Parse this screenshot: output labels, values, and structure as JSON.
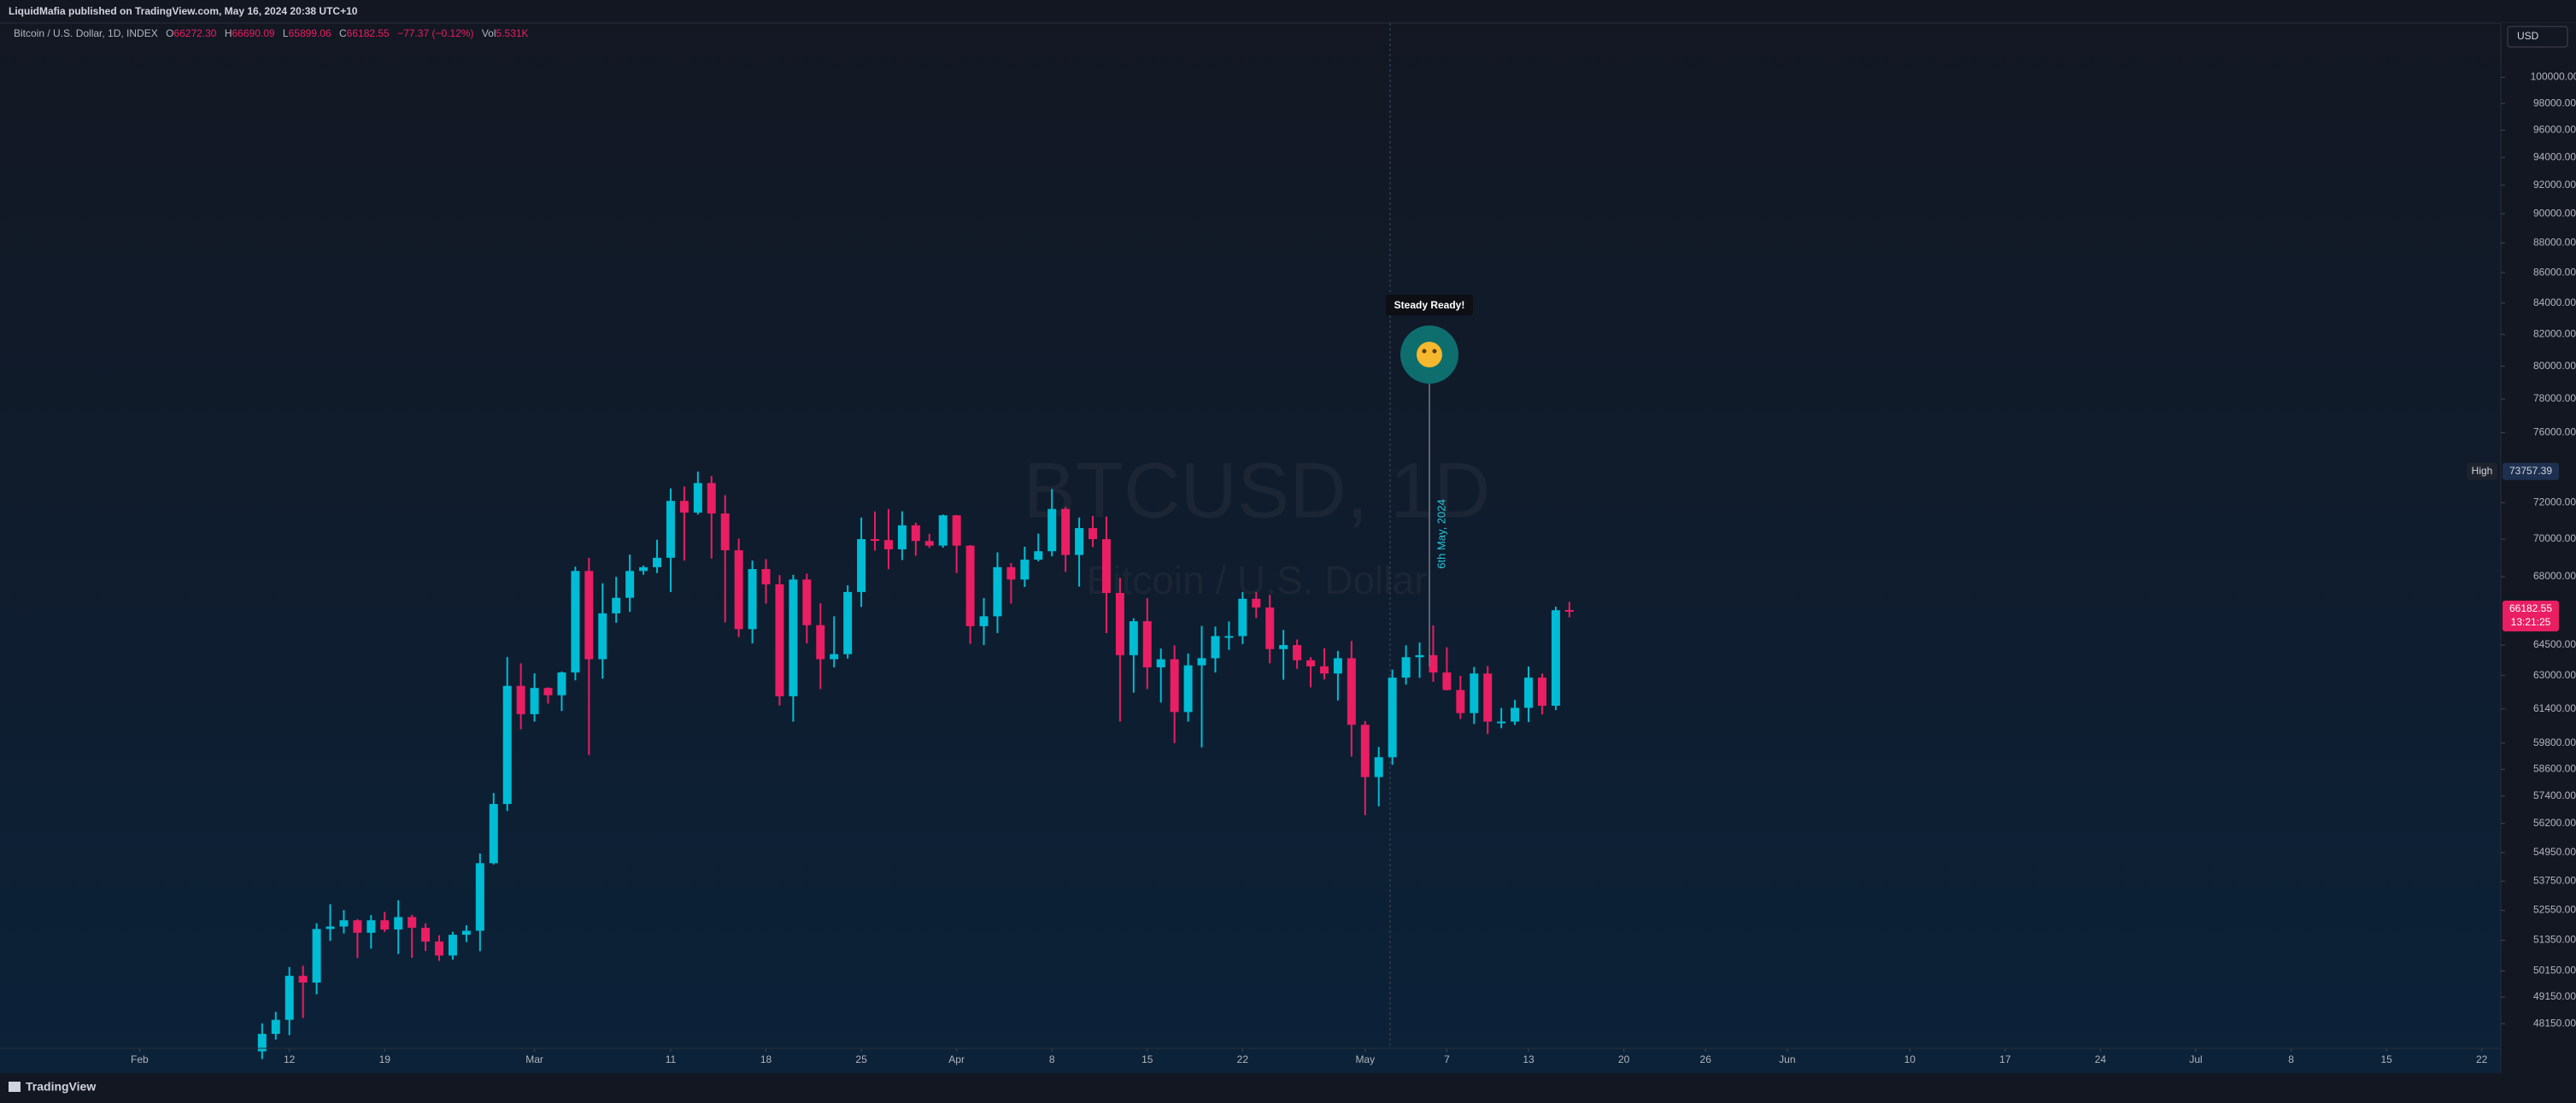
{
  "header": {
    "publisher": "LiquidMafia published on TradingView.com, May 16, 2024 20:38 UTC+10"
  },
  "legend": {
    "symbol": "Bitcoin / U.S. Dollar, 1D, INDEX",
    "open_label": "O",
    "open": "66272.30",
    "high_label": "H",
    "high": "66690.09",
    "low_label": "L",
    "low": "65899.06",
    "close_label": "C",
    "close": "66182.55",
    "change": "−77.37 (−0.12%)",
    "volume_label": "Vol",
    "volume": "5.531K"
  },
  "watermark": {
    "symbol": "BTCUSD, 1D",
    "description": "Bitcoin / U.S. Dollar"
  },
  "price_scale": {
    "currency": "USD",
    "high_label": "High",
    "high_value": "73757.39",
    "last_price": "66182.55",
    "countdown": "13:21:25"
  },
  "annotation": {
    "title": "Steady Ready!",
    "date": "6th May, 2024"
  },
  "footer": {
    "brand": "TradingView"
  },
  "chart_data": {
    "type": "candlestick",
    "up_color": "#00bcd4",
    "down_color": "#e91e63",
    "log_scale": true,
    "grid": false,
    "xlim": [
      -10,
      173.4
    ],
    "ylim": [
      47240,
      104280
    ],
    "xticks": [
      {
        "value": 0,
        "label": "Feb"
      },
      {
        "value": 11,
        "label": "12"
      },
      {
        "value": 18,
        "label": "19"
      },
      {
        "value": 29,
        "label": "Mar"
      },
      {
        "value": 39,
        "label": "11"
      },
      {
        "value": 46,
        "label": "18"
      },
      {
        "value": 53,
        "label": "25"
      },
      {
        "value": 60,
        "label": "Apr"
      },
      {
        "value": 67,
        "label": "8"
      },
      {
        "value": 74,
        "label": "15"
      },
      {
        "value": 81,
        "label": "22"
      },
      {
        "value": 90,
        "label": "May"
      },
      {
        "value": 96,
        "label": "7"
      },
      {
        "value": 102,
        "label": "13"
      },
      {
        "value": 109,
        "label": "20"
      },
      {
        "value": 115,
        "label": "26"
      },
      {
        "value": 121,
        "label": "Jun"
      },
      {
        "value": 130,
        "label": "10"
      },
      {
        "value": 137,
        "label": "17"
      },
      {
        "value": 144,
        "label": "24"
      },
      {
        "value": 151,
        "label": "Jul"
      },
      {
        "value": 158,
        "label": "8"
      },
      {
        "value": 165,
        "label": "15"
      },
      {
        "value": 172,
        "label": "22"
      }
    ],
    "yticks": [
      {
        "value": 100000,
        "label": "100000.00"
      },
      {
        "value": 98000,
        "label": "98000.00"
      },
      {
        "value": 96000,
        "label": "96000.00"
      },
      {
        "value": 94000,
        "label": "94000.00"
      },
      {
        "value": 92000,
        "label": "92000.00"
      },
      {
        "value": 90000,
        "label": "90000.00"
      },
      {
        "value": 88000,
        "label": "88000.00"
      },
      {
        "value": 86000,
        "label": "86000.00"
      },
      {
        "value": 84000,
        "label": "84000.00"
      },
      {
        "value": 82000,
        "label": "82000.00"
      },
      {
        "value": 80000,
        "label": "80000.00"
      },
      {
        "value": 78000,
        "label": "78000.00"
      },
      {
        "value": 76000,
        "label": "76000.00"
      },
      {
        "value": 72000,
        "label": "72000.00"
      },
      {
        "value": 70000,
        "label": "70000.00"
      },
      {
        "value": 68000,
        "label": "68000.00"
      },
      {
        "value": 64500,
        "label": "64500.00"
      },
      {
        "value": 63000,
        "label": "63000.00"
      },
      {
        "value": 61400,
        "label": "61400.00"
      },
      {
        "value": 59800,
        "label": "59800.00"
      },
      {
        "value": 58600,
        "label": "58600.00"
      },
      {
        "value": 57400,
        "label": "57400.00"
      },
      {
        "value": 56200,
        "label": "56200.00"
      },
      {
        "value": 54950,
        "label": "54950.00"
      },
      {
        "value": 53750,
        "label": "53750.00"
      },
      {
        "value": 52550,
        "label": "52550.00"
      },
      {
        "value": 51350,
        "label": "51350.00"
      },
      {
        "value": 50150,
        "label": "50150.00"
      },
      {
        "value": 49150,
        "label": "49150.00"
      },
      {
        "value": 48150,
        "label": "48150.00"
      }
    ],
    "x": [
      9,
      10,
      11,
      12,
      13,
      14,
      15,
      16,
      17,
      18,
      19,
      20,
      21,
      22,
      23,
      24,
      25,
      26,
      27,
      28,
      29,
      30,
      31,
      32,
      33,
      34,
      35,
      36,
      37,
      38,
      39,
      40,
      41,
      42,
      43,
      44,
      45,
      46,
      47,
      48,
      49,
      50,
      51,
      52,
      53,
      54,
      55,
      56,
      57,
      58,
      59,
      60,
      61,
      62,
      63,
      64,
      65,
      66,
      67,
      68,
      69,
      70,
      71,
      72,
      73,
      74,
      75,
      76,
      77,
      78,
      79,
      80,
      81,
      82,
      83,
      84,
      85,
      86,
      87,
      88,
      89,
      90,
      91,
      92,
      93,
      94,
      95,
      96,
      97,
      98,
      99,
      100,
      101,
      102,
      103,
      104,
      105
    ],
    "open": [
      47130,
      47770,
      48290,
      49960,
      49700,
      51800,
      51900,
      52150,
      51650,
      52150,
      51780,
      52280,
      51850,
      51300,
      50750,
      51570,
      51730,
      54500,
      57050,
      62500,
      61150,
      62400,
      62050,
      63150,
      68300,
      63800,
      66100,
      66900,
      68300,
      68500,
      69000,
      72100,
      71450,
      73100,
      71400,
      69400,
      65300,
      68400,
      67600,
      62000,
      67850,
      65500,
      63800,
      64050,
      67200,
      70000,
      69950,
      69450,
      70750,
      69900,
      69650,
      71300,
      69650,
      65450,
      65950,
      68500,
      67850,
      68900,
      69350,
      71650,
      69150,
      70600,
      70000,
      67150,
      64000,
      65700,
      63400,
      63800,
      61250,
      63500,
      63850,
      64950,
      64950,
      66850,
      66400,
      64300,
      64500,
      63750,
      63450,
      63100,
      63850,
      60650,
      58250,
      59150,
      62900,
      63900,
      64000,
      63150,
      62300,
      61200,
      63100,
      60800,
      60800,
      61450,
      62900,
      61550,
      66272.3
    ],
    "high": [
      48160,
      48590,
      50300,
      50350,
      52030,
      52800,
      52560,
      52200,
      52360,
      52490,
      52960,
      52370,
      52030,
      51550,
      51690,
      51950,
      54910,
      57540,
      63910,
      63600,
      63110,
      62430,
      63200,
      68530,
      69000,
      67650,
      67990,
      69170,
      68590,
      69970,
      72800,
      72900,
      73757.39,
      73500,
      72420,
      70030,
      68850,
      68930,
      68080,
      68100,
      68160,
      66620,
      65950,
      67550,
      71180,
      71510,
      71650,
      71520,
      70890,
      70290,
      71340,
      71320,
      69680,
      66890,
      69290,
      68720,
      69590,
      70300,
      72760,
      71760,
      71180,
      71270,
      71230,
      67930,
      65850,
      66880,
      64330,
      64480,
      64090,
      65460,
      65430,
      65690,
      67200,
      67200,
      67050,
      65260,
      64780,
      63900,
      64340,
      64210,
      64710,
      60830,
      59620,
      63290,
      64490,
      64630,
      65490,
      64390,
      62990,
      63420,
      63470,
      61440,
      61830,
      63440,
      63100,
      66440,
      66690.09
    ],
    "low": [
      46850,
      47560,
      47720,
      48360,
      49250,
      51330,
      51620,
      50650,
      51020,
      51680,
      50810,
      50660,
      50930,
      50540,
      50590,
      51280,
      50920,
      54450,
      56740,
      60440,
      60800,
      61650,
      61300,
      62770,
      59250,
      62850,
      65620,
      66170,
      68100,
      68190,
      67200,
      68850,
      71340,
      68960,
      65640,
      64900,
      64580,
      66600,
      61560,
      60800,
      64580,
      62350,
      63400,
      63830,
      66430,
      69380,
      68400,
      68880,
      69110,
      69520,
      69540,
      68190,
      64560,
      64500,
      65100,
      66600,
      67460,
      68810,
      69080,
      68250,
      67480,
      69570,
      65100,
      60800,
      62180,
      62350,
      61700,
      59800,
      60800,
      59600,
      63150,
      64260,
      64550,
      65860,
      63600,
      62800,
      63330,
      62430,
      62810,
      61800,
      59180,
      56560,
      56950,
      58800,
      62560,
      62890,
      62700,
      62280,
      60920,
      60690,
      60220,
      60490,
      60640,
      60780,
      61140,
      61340,
      65899.06
    ],
    "close": [
      47770,
      48290,
      49960,
      49700,
      51800,
      51900,
      52150,
      51650,
      52150,
      51780,
      52280,
      51850,
      51300,
      50750,
      51570,
      51730,
      54500,
      57050,
      62500,
      61150,
      62400,
      62050,
      63150,
      68300,
      63800,
      66100,
      66900,
      68300,
      68500,
      69000,
      72100,
      71450,
      73100,
      71400,
      69400,
      65300,
      68400,
      67600,
      62000,
      67850,
      65500,
      63800,
      64050,
      67200,
      70000,
      69950,
      69450,
      70750,
      69900,
      69650,
      71300,
      69650,
      65450,
      65950,
      68500,
      67850,
      68900,
      69350,
      71650,
      69150,
      70600,
      70000,
      67150,
      64000,
      65700,
      63400,
      63800,
      61250,
      63500,
      63850,
      64950,
      64950,
      66850,
      66400,
      64300,
      64500,
      63750,
      63450,
      63100,
      63850,
      60650,
      58250,
      59150,
      62900,
      63900,
      64000,
      63150,
      62300,
      61200,
      63100,
      60800,
      60800,
      61450,
      62900,
      61550,
      66259.92,
      66182.55
    ]
  }
}
